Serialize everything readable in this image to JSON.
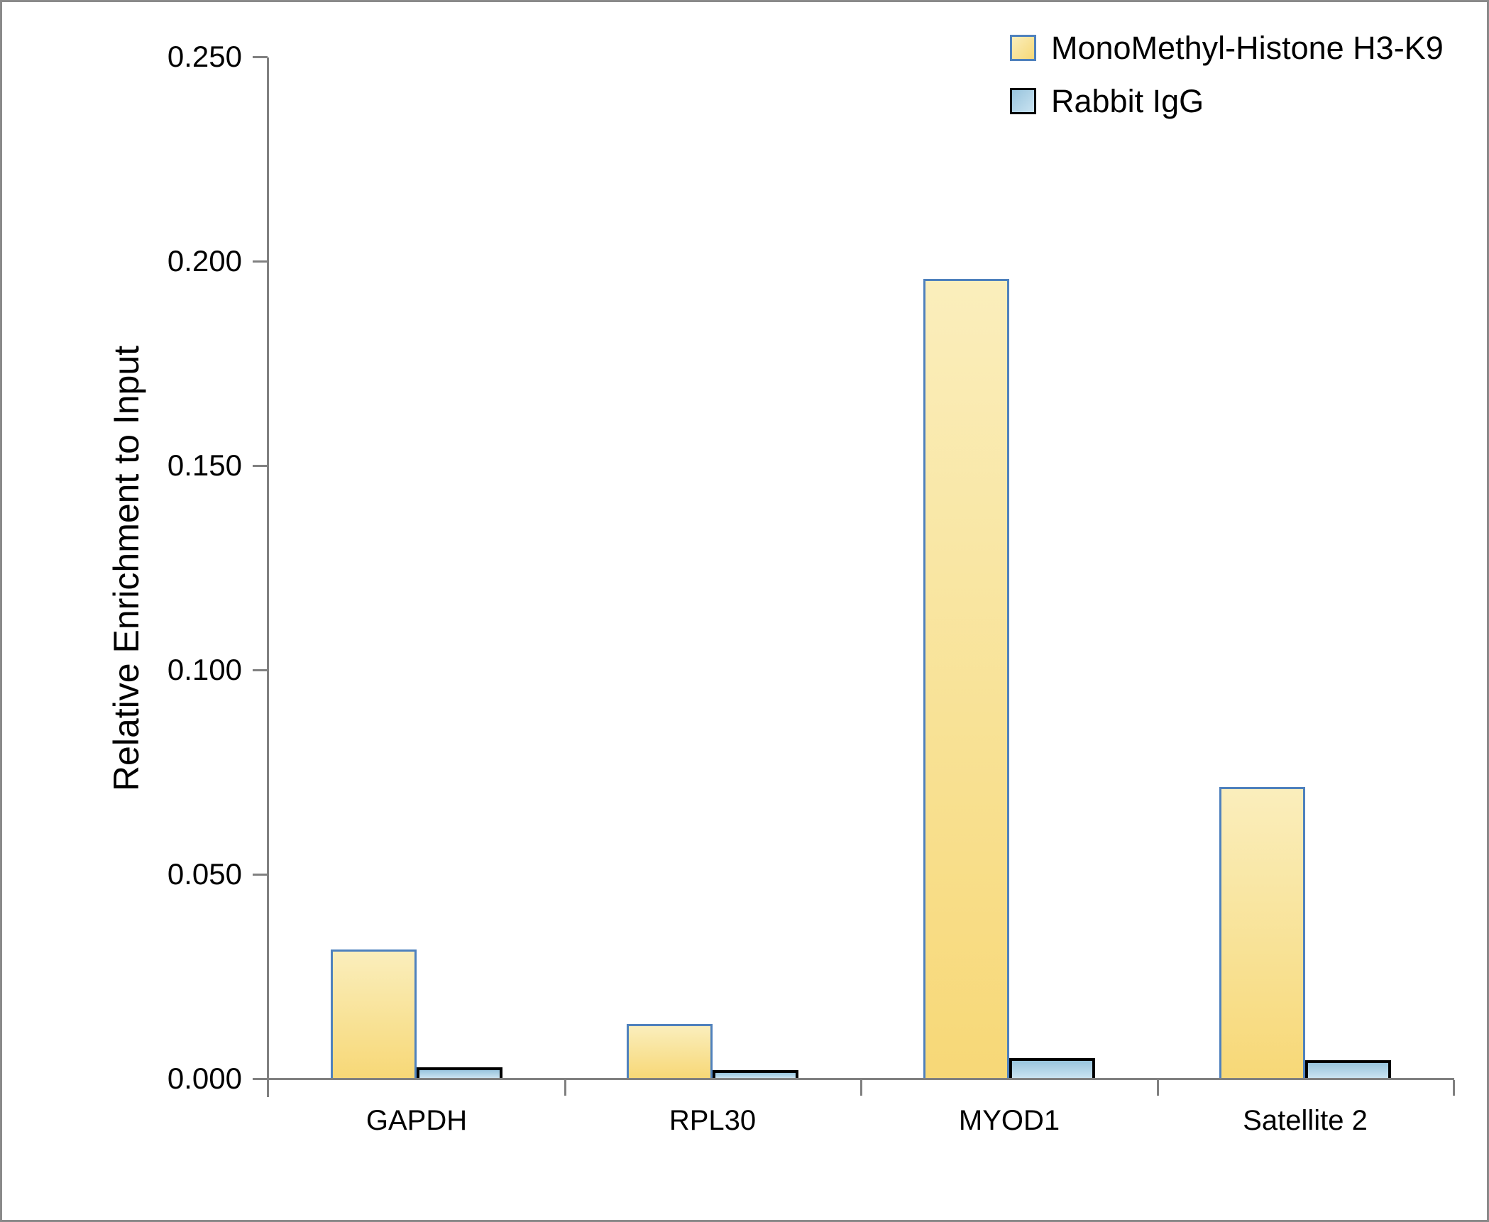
{
  "chart_data": {
    "type": "bar",
    "title": "",
    "xlabel": "",
    "ylabel": "Relative Enrichment to Input",
    "categories": [
      "GAPDH",
      "RPL30",
      "MYOD1",
      "Satellite 2"
    ],
    "series": [
      {
        "name": "MonoMethyl-Histone H3-K9",
        "values": [
          0.0314,
          0.0132,
          0.1954,
          0.0712
        ],
        "fill_top": "#faeebc",
        "fill_bottom": "#f7d877",
        "border_color": "#4f81bd",
        "border_px": 3
      },
      {
        "name": "Rabbit IgG",
        "values": [
          0.0026,
          0.0019,
          0.0049,
          0.0043
        ],
        "fill_top": "#98c4dd",
        "fill_bottom": "#cae3f1",
        "border_color": "#000000",
        "border_px": 4
      }
    ],
    "ylim": [
      0,
      0.25
    ],
    "ytick_step": 0.05,
    "ytick_labels": [
      "0.000",
      "0.050",
      "0.100",
      "0.150",
      "0.200",
      "0.250"
    ],
    "grid": false,
    "legend_position": "top-right",
    "axis_color": "#808080",
    "frame_border_color": "#8a8a8a",
    "text_color": "#000000"
  }
}
